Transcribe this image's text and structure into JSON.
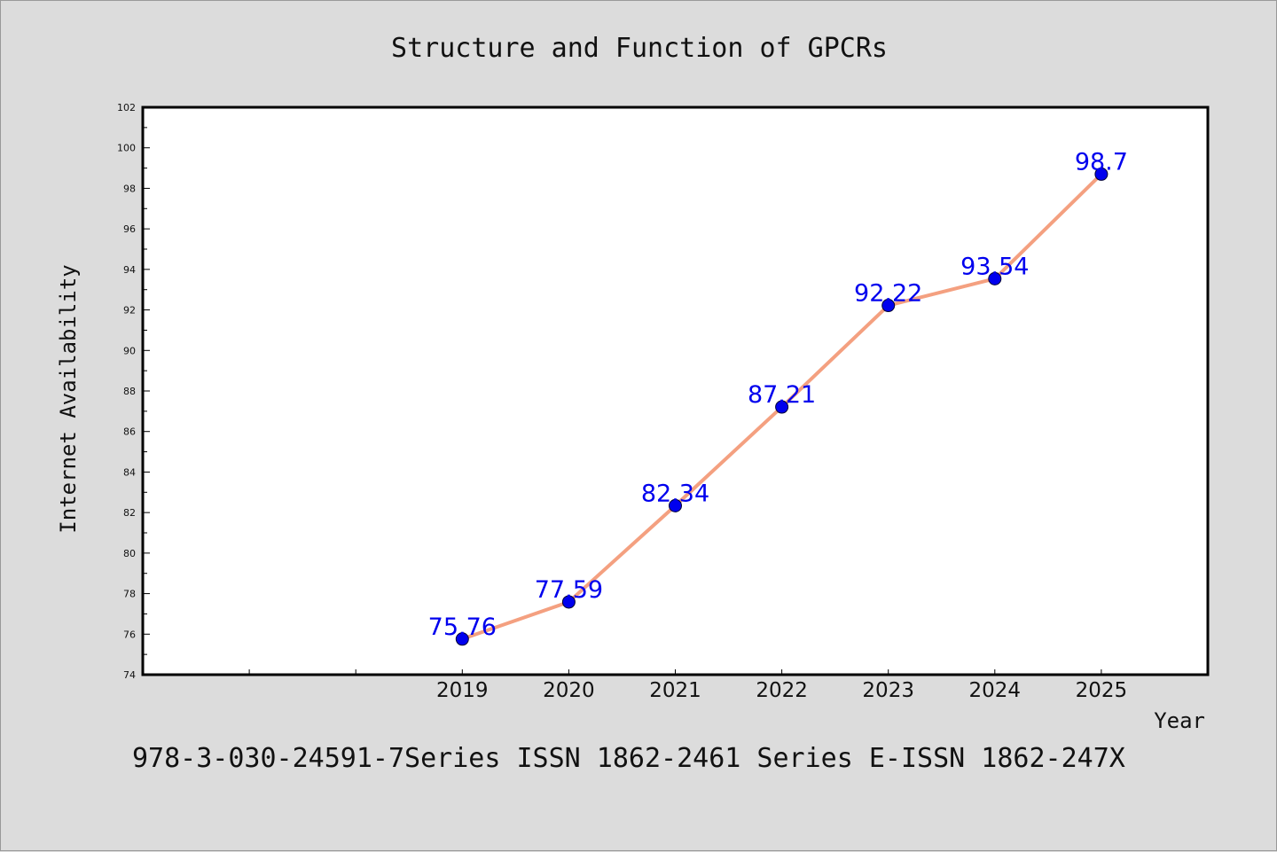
{
  "chart_data": {
    "type": "line",
    "title": "Structure and Function of GPCRs",
    "xlabel": "Year",
    "ylabel": "Internet Availability",
    "categories": [
      "2019",
      "2020",
      "2021",
      "2022",
      "2023",
      "2024",
      "2025"
    ],
    "values": [
      75.76,
      77.59,
      82.34,
      87.21,
      92.22,
      93.54,
      98.7
    ],
    "data_labels": [
      "75.76",
      "77.59",
      "82.34",
      "87.21",
      "92.22",
      "93.54",
      "98.7"
    ],
    "y_ticks": [
      "74",
      "76",
      "78",
      "80",
      "82",
      "84",
      "86",
      "88",
      "90",
      "92",
      "94",
      "96",
      "98",
      "100",
      "102"
    ],
    "ylim": [
      74,
      102
    ],
    "grid": false,
    "line_color": "#f4a080",
    "marker_color": "#0000ee",
    "label_color": "#0000ee"
  },
  "footer_text": "978-3-030-24591-7Series ISSN 1862-2461 Series E-ISSN 1862-247X"
}
